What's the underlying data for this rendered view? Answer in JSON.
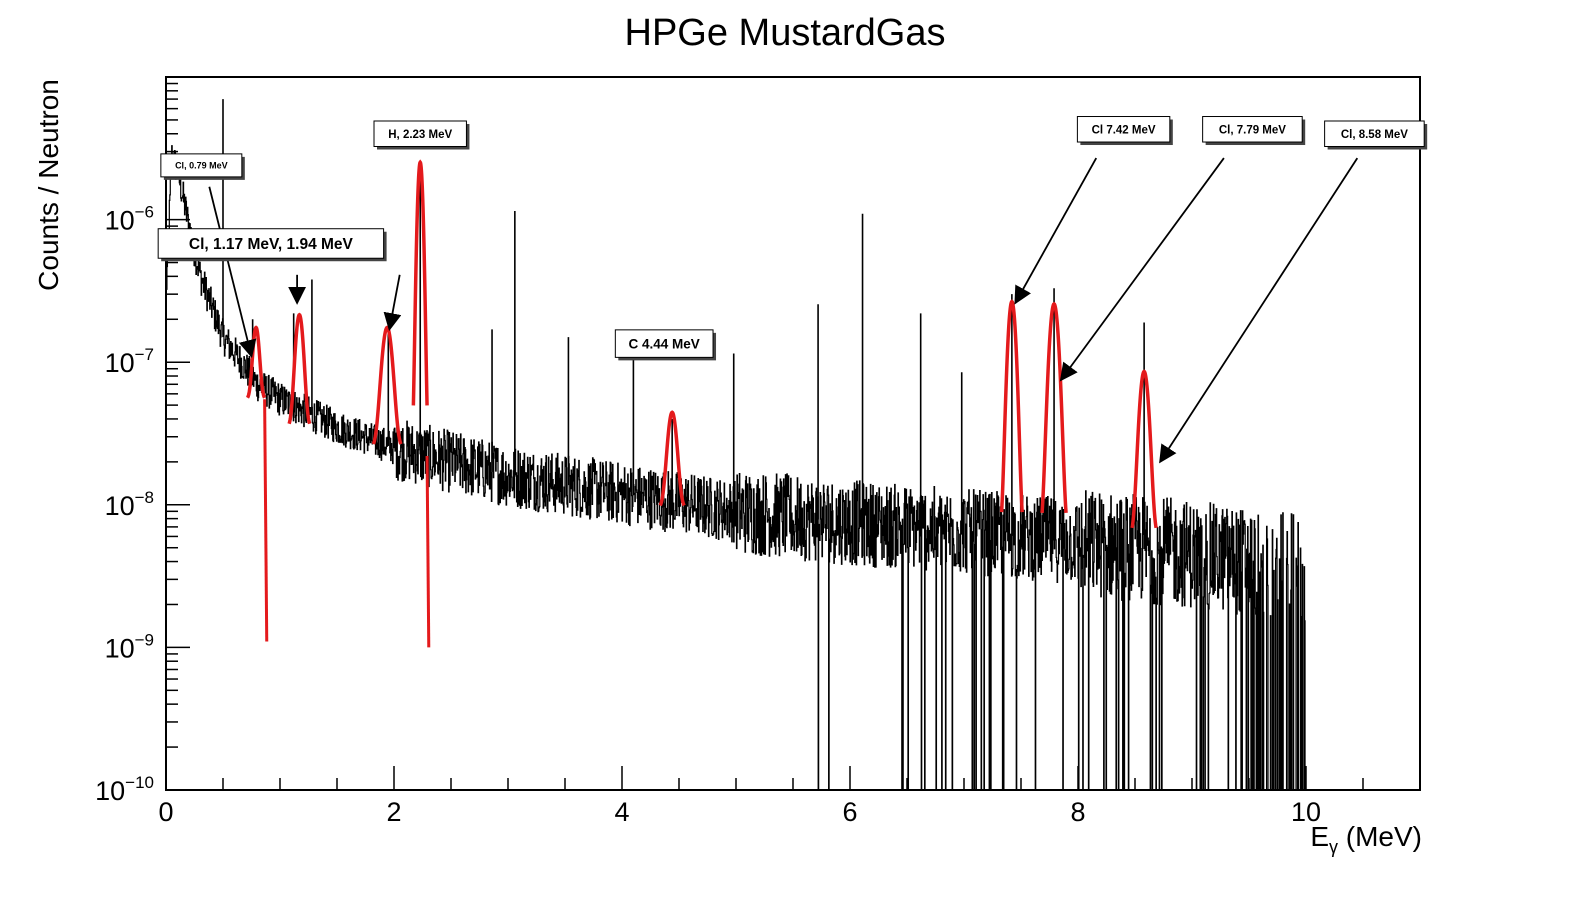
{
  "chart_data": {
    "type": "line",
    "title": "HPGe MustardGas",
    "xlabel": "E",
    "xlabel_sub": "γ",
    "xlabel_unit": " (MeV)",
    "ylabel": "Counts / Neutron",
    "xlim": [
      0,
      11
    ],
    "ylim": [
      1e-10,
      1e-05
    ],
    "yscale": "log",
    "grid": false,
    "x_ticks": [
      0,
      2,
      4,
      6,
      8,
      10
    ],
    "x_tick_labels": [
      "0",
      "2",
      "4",
      "6",
      "8",
      "10"
    ],
    "y_ticks": [
      1e-10,
      1e-09,
      1e-08,
      1e-07,
      1e-06
    ],
    "y_tick_labels": [
      {
        "base": "10",
        "exp": "−10"
      },
      {
        "base": "10",
        "exp": "−9"
      },
      {
        "base": "10",
        "exp": "−8"
      },
      {
        "base": "10",
        "exp": "−7"
      },
      {
        "base": "10",
        "exp": "−6"
      }
    ],
    "series": [
      {
        "color": "#000000",
        "style": "histogram",
        "x_max": 10.0,
        "continuum_points": [
          {
            "x": 0.0,
            "y": 3e-07
          },
          {
            "x": 0.05,
            "y": 2.8e-06
          },
          {
            "x": 0.1,
            "y": 2.2e-06
          },
          {
            "x": 0.2,
            "y": 9e-07
          },
          {
            "x": 0.3,
            "y": 4e-07
          },
          {
            "x": 0.5,
            "y": 1.5e-07
          },
          {
            "x": 0.8,
            "y": 7e-08
          },
          {
            "x": 1.0,
            "y": 5.5e-08
          },
          {
            "x": 1.5,
            "y": 3.5e-08
          },
          {
            "x": 2.0,
            "y": 2.5e-08
          },
          {
            "x": 3.0,
            "y": 1.6e-08
          },
          {
            "x": 4.0,
            "y": 1.2e-08
          },
          {
            "x": 5.0,
            "y": 9e-09
          },
          {
            "x": 6.0,
            "y": 7.5e-09
          },
          {
            "x": 7.0,
            "y": 6.5e-09
          },
          {
            "x": 8.0,
            "y": 5.5e-09
          },
          {
            "x": 9.0,
            "y": 4.5e-09
          },
          {
            "x": 10.0,
            "y": 3.5e-09
          }
        ],
        "spikes": [
          {
            "x": 0.5,
            "y": 7e-06
          },
          {
            "x": 0.76,
            "y": 2e-07
          },
          {
            "x": 1.12,
            "y": 2.2e-07
          },
          {
            "x": 1.28,
            "y": 3.8e-07
          },
          {
            "x": 1.95,
            "y": 1.6e-07
          },
          {
            "x": 2.23,
            "y": 2.5e-06
          },
          {
            "x": 2.86,
            "y": 1.7e-07
          },
          {
            "x": 3.06,
            "y": 1.15e-06
          },
          {
            "x": 3.53,
            "y": 1.5e-07
          },
          {
            "x": 4.1,
            "y": 1.2e-07
          },
          {
            "x": 4.44,
            "y": 4e-08
          },
          {
            "x": 4.98,
            "y": 1.15e-07
          },
          {
            "x": 5.72,
            "y": 2.55e-07
          },
          {
            "x": 6.11,
            "y": 1.1e-06
          },
          {
            "x": 6.62,
            "y": 2.2e-07
          },
          {
            "x": 6.98,
            "y": 8.5e-08
          },
          {
            "x": 7.42,
            "y": 3e-07
          },
          {
            "x": 7.79,
            "y": 3.3e-07
          },
          {
            "x": 8.58,
            "y": 1.9e-07
          }
        ]
      },
      {
        "color": "#e41a1c",
        "style": "gaussian-fits",
        "peaks": [
          {
            "center": 0.79,
            "amplitude": 1.2e-07,
            "baseline": 5.5e-08,
            "sigma": 0.025,
            "dip": 1.1e-09
          },
          {
            "center": 1.17,
            "amplitude": 1.8e-07,
            "baseline": 3.5e-08,
            "sigma": 0.03
          },
          {
            "center": 1.94,
            "amplitude": 1.5e-07,
            "baseline": 2.5e-08,
            "sigma": 0.04
          },
          {
            "center": 2.23,
            "amplitude": 2.5e-06,
            "baseline": 2.2e-08,
            "sigma": 0.02,
            "dip": 1e-09
          },
          {
            "center": 4.44,
            "amplitude": 3.5e-08,
            "baseline": 9.5e-09,
            "sigma": 0.035
          },
          {
            "center": 7.42,
            "amplitude": 2.6e-07,
            "baseline": 6e-09,
            "sigma": 0.03
          },
          {
            "center": 7.79,
            "amplitude": 2.5e-07,
            "baseline": 6e-09,
            "sigma": 0.035
          },
          {
            "center": 8.58,
            "amplitude": 8e-08,
            "baseline": 6e-09,
            "sigma": 0.035
          }
        ]
      }
    ],
    "annotations": [
      {
        "text": "Cl, 0.79 MeV",
        "size": "xsmall",
        "box_x": 0.31,
        "box_y": 2.4e-06,
        "arrow_from": {
          "x": 0.38,
          "y": 1.7e-06
        },
        "arrow_to": {
          "x": 0.75,
          "y": 1.1e-07
        }
      },
      {
        "text": "Cl, 1.17 MeV, 1.94 MeV",
        "size": "large",
        "box_x": 0.92,
        "box_y": 6.8e-07,
        "arrow_from": {
          "x": 1.15,
          "y": 4.1e-07
        },
        "arrow_to": {
          "x": 1.15,
          "y": 2.6e-07
        },
        "arrow2_from": {
          "x": 2.05,
          "y": 4.1e-07
        },
        "arrow2_to": {
          "x": 1.96,
          "y": 1.7e-07
        }
      },
      {
        "text": "H, 2.23 MeV",
        "size": "small",
        "box_x": 2.23,
        "box_y": 4e-06
      },
      {
        "text": "C 4.44 MeV",
        "size": "medium",
        "box_x": 4.37,
        "box_y": 1.35e-07
      },
      {
        "text": "Cl 7.42 MeV",
        "size": "small",
        "box_x": 8.4,
        "box_y": 4.3e-06,
        "arrow_from": {
          "x": 8.16,
          "y": 2.7e-06
        },
        "arrow_to": {
          "x": 7.45,
          "y": 2.6e-07
        }
      },
      {
        "text": "Cl, 7.79 MeV",
        "size": "small",
        "box_x": 9.53,
        "box_y": 4.3e-06,
        "arrow_from": {
          "x": 9.28,
          "y": 2.7e-06
        },
        "arrow_to": {
          "x": 7.85,
          "y": 7.5e-08
        }
      },
      {
        "text": "Cl, 8.58 MeV",
        "size": "small",
        "box_x": 10.6,
        "box_y": 4e-06,
        "arrow_from": {
          "x": 10.45,
          "y": 2.7e-06
        },
        "arrow_to": {
          "x": 8.72,
          "y": 2e-08
        }
      }
    ]
  }
}
